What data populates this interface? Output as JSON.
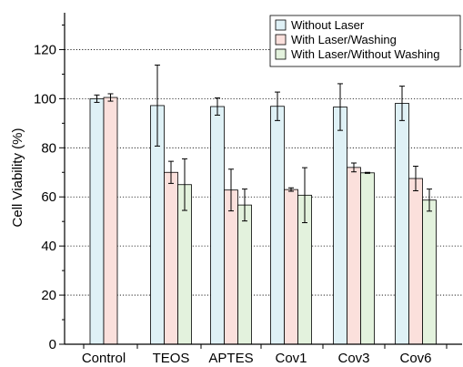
{
  "chart_data": {
    "type": "bar",
    "title": "",
    "xlabel": "",
    "ylabel": "Cell Viability (%)",
    "ylim": [
      0,
      135
    ],
    "yticks": [
      0,
      20,
      40,
      60,
      80,
      100,
      120
    ],
    "grid": "horizontal dotted",
    "legend_position": "top-right",
    "categories": [
      "Control",
      "TEOS",
      "APTES",
      "Cov1",
      "Cov3",
      "Cov6"
    ],
    "series": [
      {
        "name": "Without Laser",
        "color": "#dff1f6",
        "values": [
          100,
          97.2,
          96.8,
          96.9,
          96.6,
          98.1
        ],
        "errors": [
          1.5,
          16.5,
          3.5,
          5.8,
          9.5,
          7.0
        ]
      },
      {
        "name": "With Laser/Washing",
        "color": "#fbe0dc",
        "values": [
          100.5,
          70,
          62.8,
          63,
          72,
          67.5
        ],
        "errors": [
          1.5,
          4.5,
          8.5,
          0.7,
          1.8,
          5.0
        ]
      },
      {
        "name": "With Laser/Without Washing",
        "color": "#e3f2dd",
        "values": [
          null,
          65,
          56.7,
          60.7,
          69.8,
          58.7
        ],
        "errors": [
          null,
          10.5,
          6.5,
          11.2,
          0.2,
          4.5
        ]
      }
    ]
  }
}
